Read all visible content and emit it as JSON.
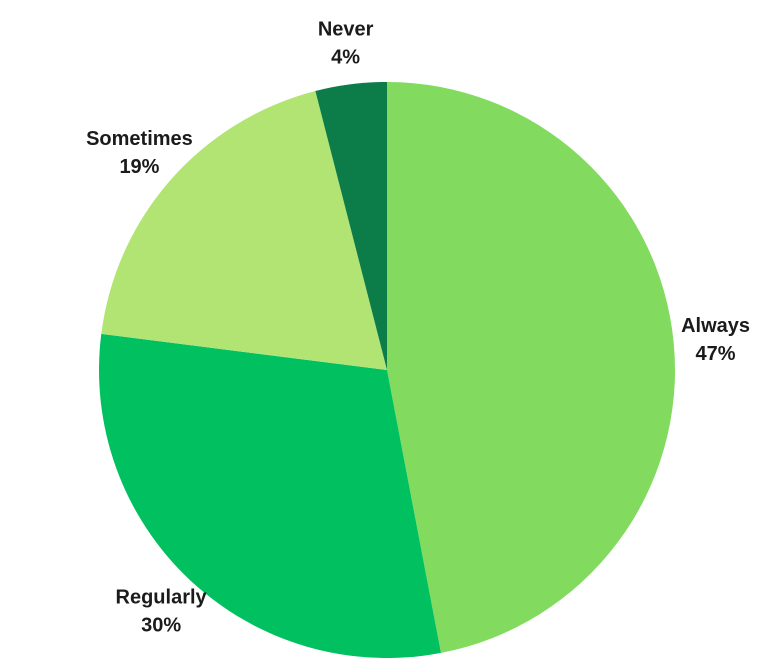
{
  "chart_data": {
    "type": "pie",
    "title": "",
    "slices": [
      {
        "label": "Always",
        "value": 47,
        "display": "47%",
        "color": "#82da5f"
      },
      {
        "label": "Regularly",
        "value": 30,
        "display": "30%",
        "color": "#00c060"
      },
      {
        "label": "Sometimes",
        "value": 19,
        "display": "19%",
        "color": "#b2e474"
      },
      {
        "label": "Never",
        "value": 4,
        "display": "4%",
        "color": "#0c7c48"
      }
    ],
    "start_angle_deg": 0,
    "direction": "clockwise",
    "legend": "none",
    "labels": "outside"
  }
}
